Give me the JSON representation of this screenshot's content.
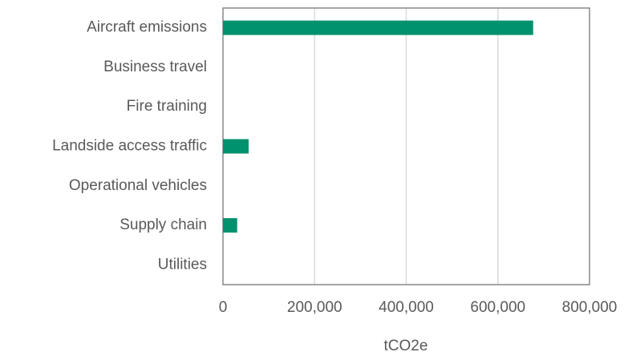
{
  "chart_data": {
    "type": "bar",
    "orientation": "horizontal",
    "categories": [
      "Aircraft emissions",
      "Business travel",
      "Fire training",
      "Landside access traffic",
      "Operational vehicles",
      "Supply chain",
      "Utilities"
    ],
    "values": [
      677000,
      0,
      0,
      56000,
      0,
      31000,
      0
    ],
    "color": "#00916e",
    "xlabel": "tCO2e",
    "xlim": [
      0,
      800000
    ],
    "xticks": [
      0,
      {
        "value": 200000,
        "label": "200,000"
      },
      {
        "value": 400000,
        "label": "400,000"
      },
      {
        "value": 600000,
        "label": "600,000"
      },
      {
        "value": 800000,
        "label": "800,000"
      }
    ],
    "grid": true
  }
}
